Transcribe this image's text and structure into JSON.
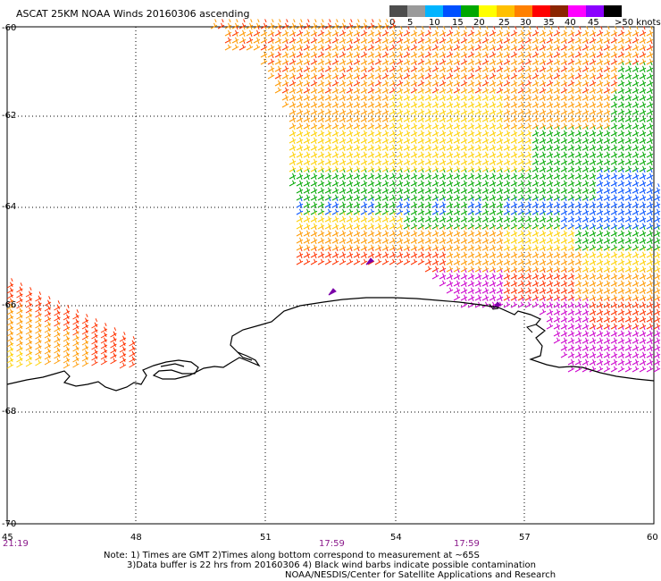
{
  "header": {
    "title": "ASCAT 25KM NOAA Winds 20160306 ascending"
  },
  "legend": {
    "colors": [
      "#4d4d4d",
      "#9a9a9a",
      "#00b4ff",
      "#0050ff",
      "#00a800",
      "#ffff00",
      "#ffc000",
      "#ff8000",
      "#ff0000",
      "#8b2500",
      "#ff00ff",
      "#8b00ff",
      "#000000"
    ],
    "labels": [
      "0",
      "5",
      "10",
      "15",
      "20",
      "25",
      "30",
      "35",
      "40",
      "45",
      ">50 knots"
    ]
  },
  "axes": {
    "lat_labels": [
      "-60",
      "-62",
      "-64",
      "-66",
      "-68",
      "-70"
    ],
    "lon_labels": [
      "45",
      "48",
      "51",
      "54",
      "57",
      "60"
    ]
  },
  "times": [
    "21:19",
    "17:59",
    "17:59"
  ],
  "notes": {
    "line1": "Note: 1) Times are GMT 2)Times along bottom correspond to measurement at ~65S",
    "line2": "3)Data buffer is 22 hrs from 20160306 4) Black wind barbs indicate possible contamination",
    "line3": "NOAA/NESDIS/Center for Satellite Applications and Research"
  },
  "map": {
    "coast_color": "#000000",
    "grid_style": "dotted",
    "speed_bands": {
      "green": "#00a800",
      "blue": "#0050ff",
      "yellow": "#ffd000",
      "orange": "#ff9900",
      "red": "#ff3300",
      "magenta": "#cc00cc"
    }
  }
}
